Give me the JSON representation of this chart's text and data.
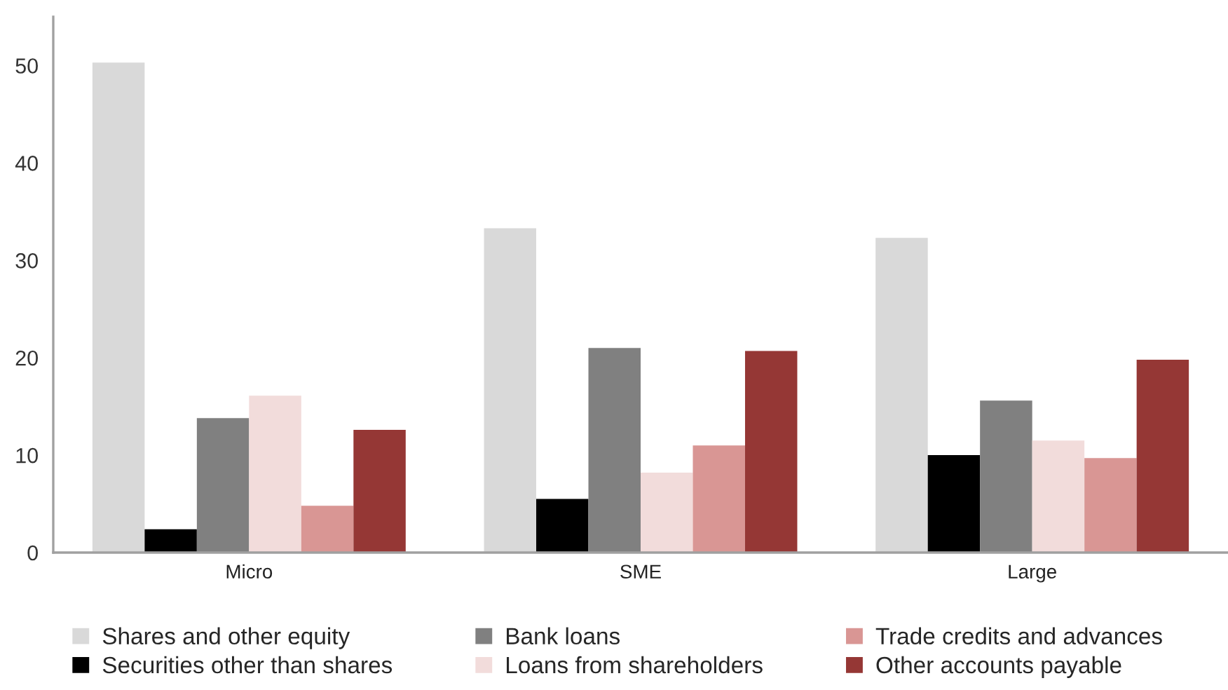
{
  "chart_data": {
    "type": "bar",
    "categories": [
      "Micro",
      "SME",
      "Large"
    ],
    "series": [
      {
        "name": "Shares and other equity",
        "color": "#d9d9d9",
        "values": [
          50.3,
          33.3,
          32.3
        ]
      },
      {
        "name": "Securities other than shares",
        "color": "#000000",
        "values": [
          2.4,
          5.5,
          10.0
        ]
      },
      {
        "name": "Bank loans",
        "color": "#808080",
        "values": [
          13.8,
          21.0,
          15.6
        ]
      },
      {
        "name": "Loans from shareholders",
        "color": "#f2dcdb",
        "values": [
          16.1,
          8.2,
          11.5
        ]
      },
      {
        "name": "Trade credits and advances",
        "color": "#d99694",
        "values": [
          4.8,
          11.0,
          9.7
        ]
      },
      {
        "name": "Other accounts payable",
        "color": "#953735",
        "values": [
          12.6,
          20.7,
          19.8
        ]
      }
    ],
    "ylim": [
      0,
      55
    ],
    "yticks": [
      0,
      10,
      20,
      30,
      40,
      50
    ],
    "grid": false,
    "legend": "bottom"
  }
}
